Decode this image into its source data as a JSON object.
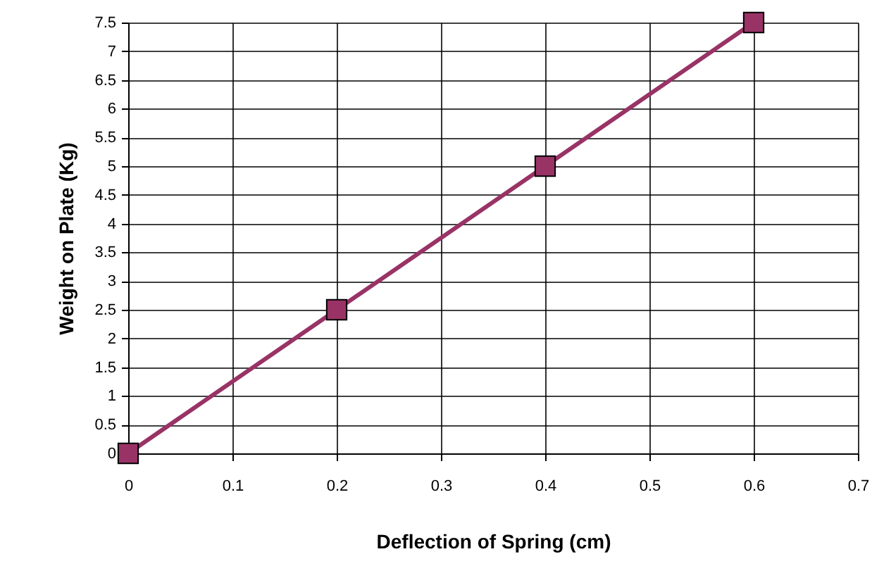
{
  "chart_data": {
    "type": "line",
    "xlabel": "Deflection of Spring (cm)",
    "ylabel": "Weight on Plate (Kg)",
    "x": [
      0,
      0.2,
      0.4,
      0.6
    ],
    "series": [
      {
        "color": "#993366",
        "values": [
          0,
          2.5,
          5,
          7.5
        ]
      }
    ],
    "xlim": [
      0,
      0.7
    ],
    "xticks": [
      0,
      0.1,
      0.2,
      0.3,
      0.4,
      0.5,
      0.6,
      0.7
    ],
    "ylim": [
      0,
      7.5
    ],
    "yticks": [
      0,
      0.5,
      1,
      1.5,
      2,
      2.5,
      3,
      3.5,
      4,
      4.5,
      5,
      5.5,
      6,
      6.5,
      7,
      7.5
    ],
    "grid": true,
    "marker": "square",
    "line_style": "solid"
  }
}
